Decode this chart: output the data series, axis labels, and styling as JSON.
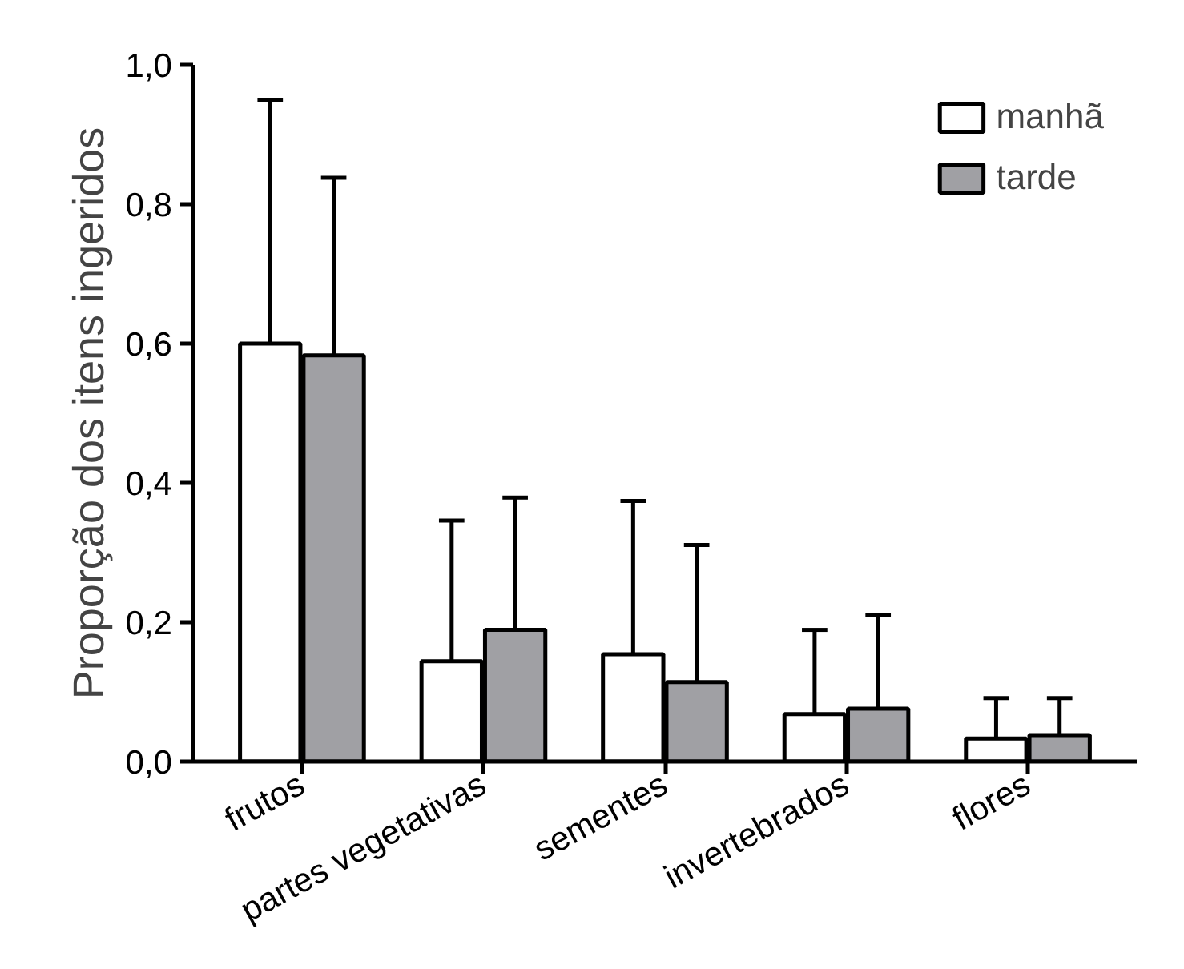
{
  "chart_data": {
    "type": "bar",
    "ylabel": "Proporção dos itens ingeridos",
    "categories": [
      "frutos",
      "partes vegetativas",
      "sementes",
      "invertebrados",
      "flores"
    ],
    "series": [
      {
        "name": "manhã",
        "color": "#ffffff",
        "values": [
          0.6,
          0.144,
          0.154,
          0.068,
          0.033
        ],
        "errors": [
          [
            0.6,
            0.95
          ],
          [
            0.144,
            0.346
          ],
          [
            0.154,
            0.374
          ],
          [
            0.068,
            0.189
          ],
          [
            0.033,
            0.091
          ]
        ]
      },
      {
        "name": "tarde",
        "color": "#a0a0a4",
        "values": [
          0.583,
          0.189,
          0.114,
          0.076,
          0.038
        ],
        "errors": [
          [
            0.583,
            0.838
          ],
          [
            0.189,
            0.379
          ],
          [
            0.114,
            0.311
          ],
          [
            0.076,
            0.21
          ],
          [
            0.038,
            0.091
          ]
        ]
      }
    ],
    "ylim": [
      0,
      1.0
    ],
    "yticks": [
      {
        "value": 0,
        "label": "0,0"
      },
      {
        "value": 0.2,
        "label": "0,2"
      },
      {
        "value": 0.4,
        "label": "0,4"
      },
      {
        "value": 0.6,
        "label": "0,6"
      },
      {
        "value": 0.8,
        "label": "0,8"
      },
      {
        "value": 1.0,
        "label": "1,0"
      }
    ],
    "grid": false,
    "legend": "top right"
  }
}
